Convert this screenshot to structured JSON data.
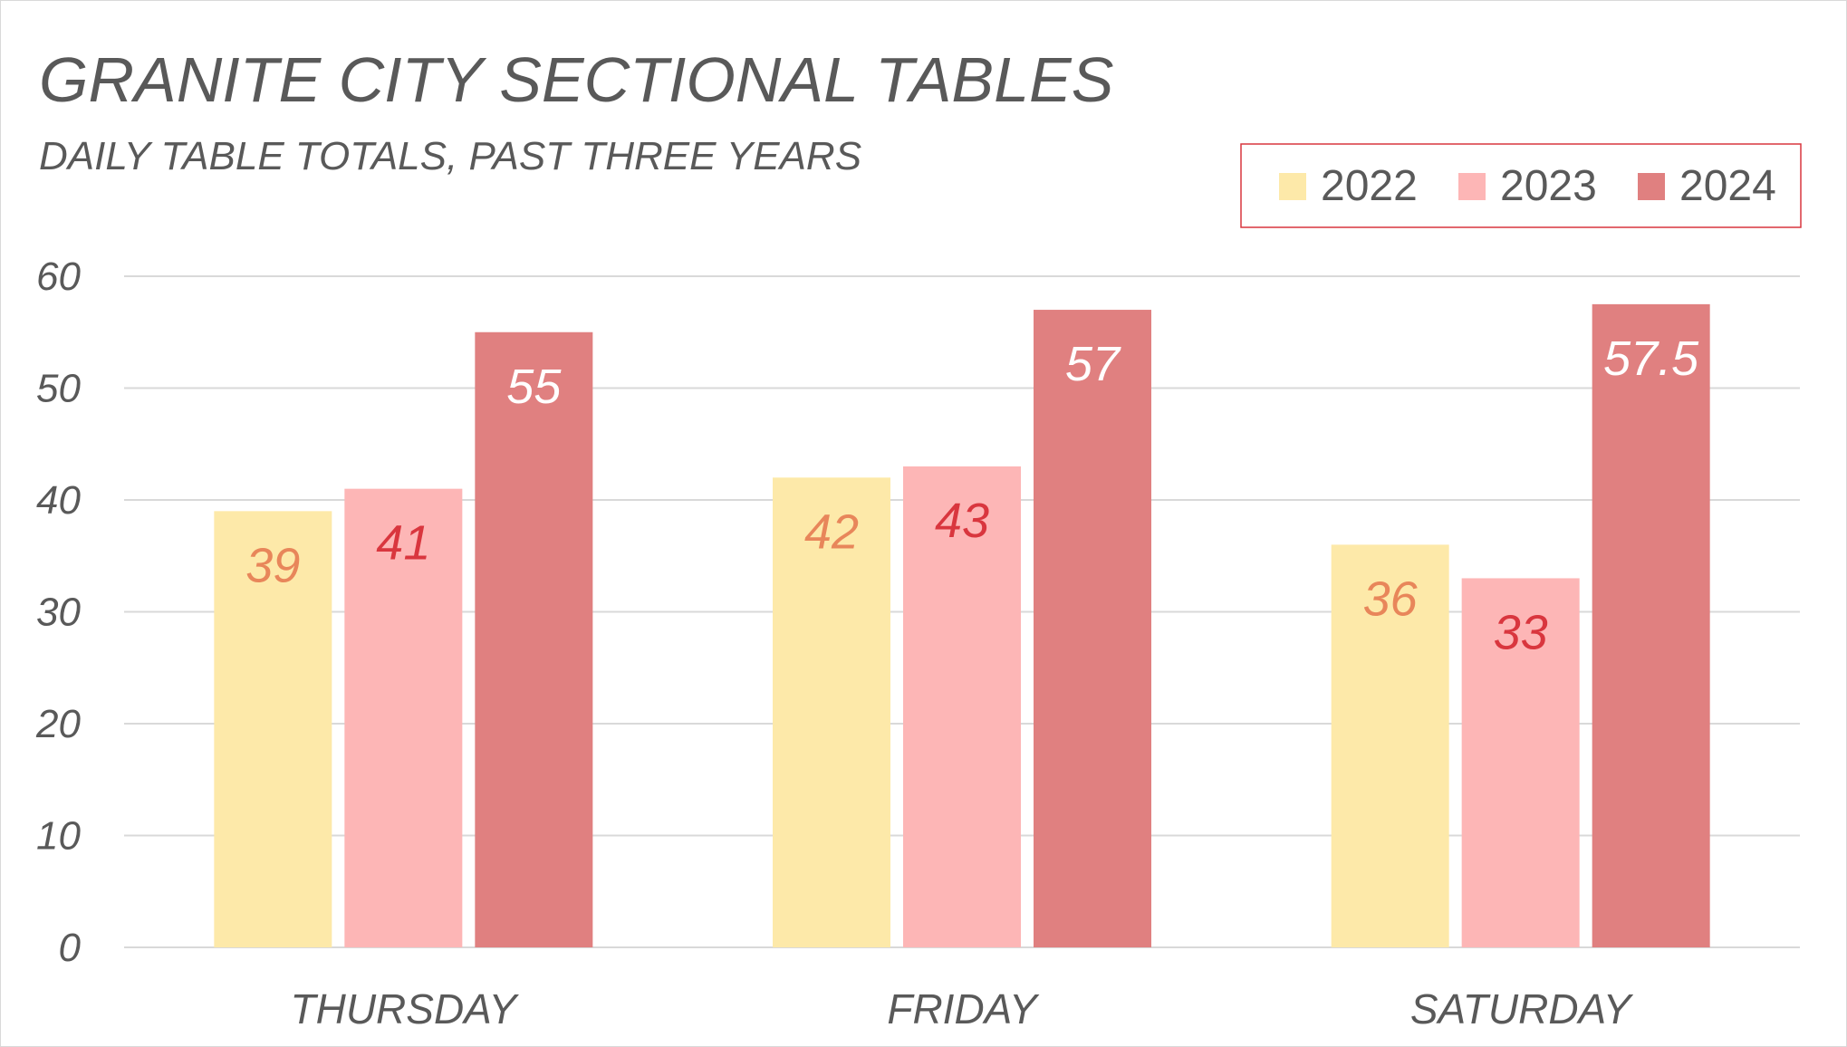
{
  "chart_data": {
    "type": "bar",
    "title": "GRANITE CITY SECTIONAL TABLES",
    "subtitle": "DAILY TABLE TOTALS, PAST THREE YEARS",
    "categories": [
      "THURSDAY",
      "FRIDAY",
      "SATURDAY"
    ],
    "series": [
      {
        "name": "2022",
        "values": [
          39,
          42,
          36
        ],
        "color": "#fde9a9",
        "label_color": "#e8865a"
      },
      {
        "name": "2023",
        "values": [
          41,
          43,
          33
        ],
        "color": "#fdb6b6",
        "label_color": "#d9363e"
      },
      {
        "name": "2024",
        "values": [
          55,
          57,
          57.5
        ],
        "color": "#e08080",
        "label_color": "#ffffff"
      }
    ],
    "ylim": [
      0,
      60
    ],
    "yticks": [
      0,
      10,
      20,
      30,
      40,
      50,
      60
    ],
    "xlabel": "",
    "ylabel": "",
    "grid": true,
    "legend_position": "top-right",
    "legend_border_color": "#d9363e",
    "gridline_color": "#d9d9d9"
  }
}
